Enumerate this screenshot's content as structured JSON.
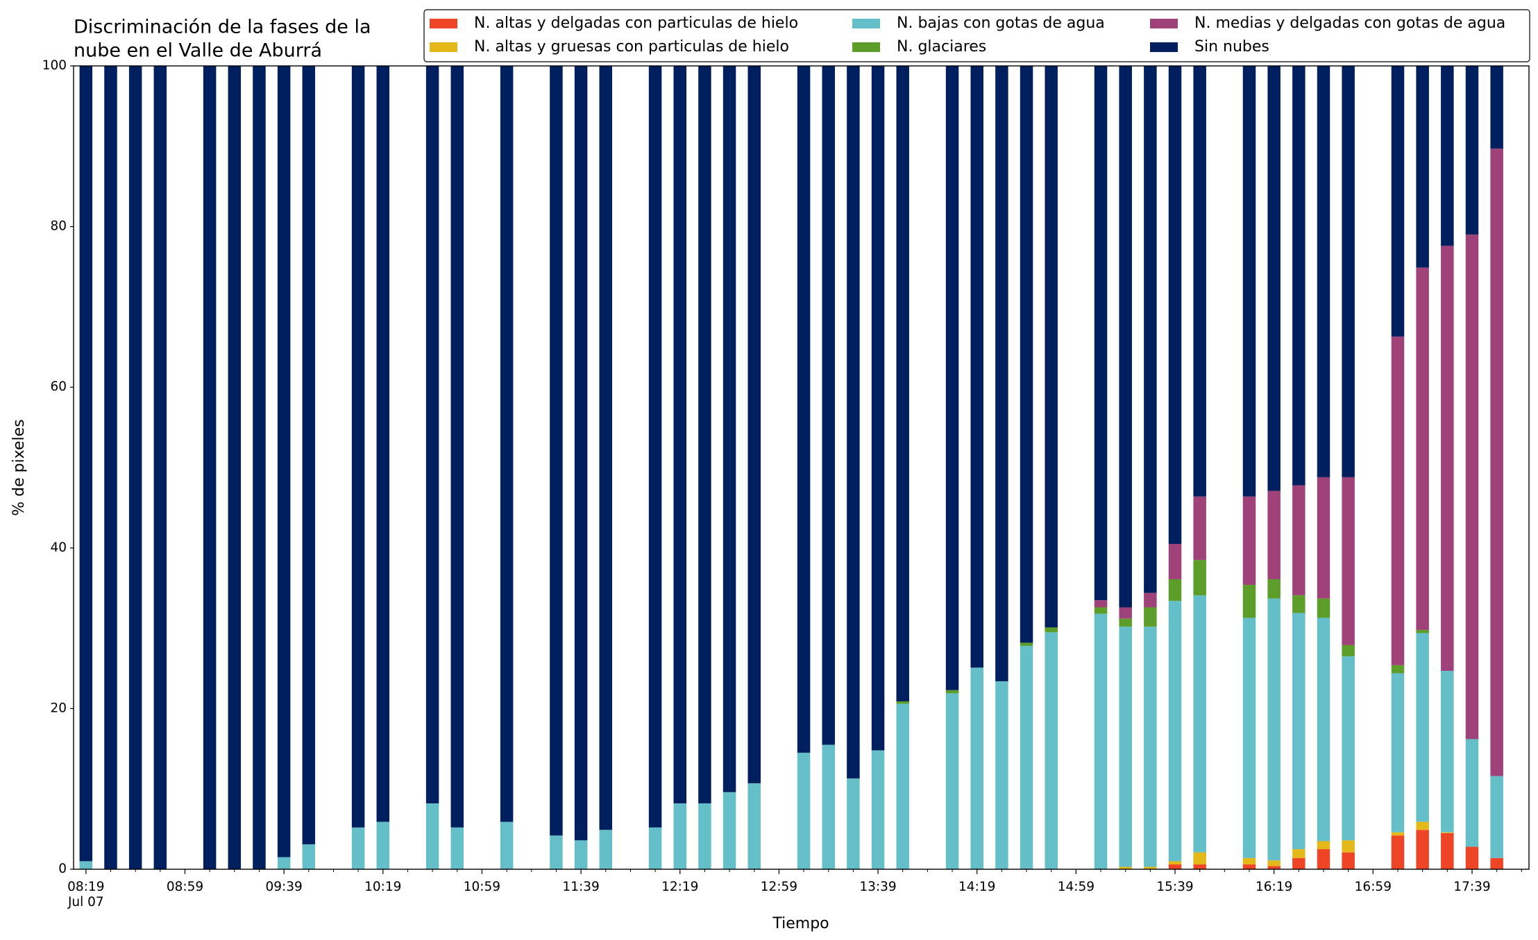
{
  "chart_data": {
    "type": "stacked_bar",
    "title": [
      "Discriminación de la fases de la",
      "nube en el Valle de Aburrá"
    ],
    "xlabel": "Tiempo",
    "ylabel": "% de pixeles",
    "date_label": "Jul 07",
    "x": [
      "08:19",
      "08:29",
      "08:39",
      "08:49",
      "09:09",
      "09:19",
      "09:29",
      "09:39",
      "09:49",
      "10:09",
      "10:19",
      "10:39",
      "10:49",
      "11:09",
      "11:29",
      "11:39",
      "11:49",
      "12:09",
      "12:19",
      "12:29",
      "12:39",
      "12:49",
      "13:09",
      "13:19",
      "13:29",
      "13:39",
      "13:49",
      "14:09",
      "14:19",
      "14:29",
      "14:39",
      "14:49",
      "15:09",
      "15:19",
      "15:29",
      "15:39",
      "15:49",
      "16:09",
      "16:19",
      "16:29",
      "16:39",
      "16:49",
      "17:09",
      "17:19",
      "17:29",
      "17:39",
      "17:49"
    ],
    "series": [
      {
        "name": "N. altas y delgadas con particulas de hielo",
        "color": "#ee4527",
        "values": [
          0,
          0,
          0,
          0,
          0,
          0,
          0,
          0,
          0,
          0,
          0,
          0,
          0,
          0,
          0,
          0,
          0,
          0,
          0,
          0,
          0,
          0,
          0,
          0,
          0,
          0,
          0,
          0,
          0,
          0,
          0,
          0,
          0,
          0,
          0,
          0.6,
          0.6,
          0.6,
          0.4,
          1.4,
          2.5,
          2.1,
          4.2,
          4.9,
          4.5,
          2.8,
          1.4
        ]
      },
      {
        "name": "N. altas y gruesas con particulas de hielo",
        "color": "#e5b81a",
        "values": [
          0,
          0,
          0,
          0,
          0,
          0,
          0,
          0,
          0,
          0,
          0,
          0,
          0,
          0,
          0,
          0,
          0,
          0,
          0,
          0,
          0,
          0,
          0,
          0,
          0,
          0,
          0,
          0,
          0,
          0,
          0,
          0,
          0,
          0.3,
          0.3,
          0.4,
          1.5,
          0.8,
          0.7,
          1.1,
          1.0,
          1.5,
          0.4,
          1.0,
          0.1,
          0,
          0
        ]
      },
      {
        "name": "N. bajas con gotas de agua",
        "color": "#64bfc9",
        "values": [
          1.0,
          0,
          0,
          0,
          0,
          0,
          0,
          1.5,
          3.1,
          5.2,
          5.9,
          8.2,
          5.2,
          5.9,
          4.2,
          3.6,
          4.9,
          5.2,
          8.2,
          8.2,
          9.6,
          10.7,
          14.5,
          15.5,
          11.3,
          14.8,
          20.6,
          21.9,
          25.1,
          23.4,
          27.8,
          29.5,
          31.8,
          29.9,
          29.9,
          32.4,
          32.0,
          29.9,
          32.6,
          29.4,
          27.8,
          22.9,
          19.8,
          23.5,
          20.1,
          13.4,
          10.2
        ]
      },
      {
        "name": "N. glaciares",
        "color": "#5d9e2b",
        "values": [
          0,
          0,
          0,
          0,
          0,
          0,
          0,
          0,
          0,
          0,
          0,
          0,
          0,
          0,
          0,
          0,
          0,
          0,
          0,
          0,
          0,
          0,
          0,
          0,
          0,
          0,
          0.3,
          0.4,
          0,
          0,
          0.4,
          0.6,
          0.8,
          1.0,
          2.4,
          2.7,
          4.4,
          4.1,
          2.4,
          2.2,
          2.4,
          1.4,
          1.0,
          0.4,
          0,
          0,
          0
        ]
      },
      {
        "name": "N. medias y delgadas con gotas de agua",
        "color": "#a0427a",
        "values": [
          0,
          0,
          0,
          0,
          0,
          0,
          0,
          0,
          0,
          0,
          0,
          0,
          0,
          0,
          0,
          0,
          0,
          0,
          0,
          0,
          0,
          0,
          0,
          0,
          0,
          0,
          0,
          0,
          0,
          0,
          0,
          0,
          0.9,
          1.4,
          1.8,
          4.4,
          7.9,
          11.0,
          11.0,
          13.7,
          15.1,
          20.9,
          40.9,
          45.1,
          52.9,
          62.8,
          78.1
        ]
      },
      {
        "name": "Sin nubes",
        "color": "#001f5f",
        "values": [
          99.0,
          100,
          100,
          100,
          100,
          100,
          100,
          98.5,
          96.9,
          94.8,
          94.1,
          91.8,
          94.8,
          94.1,
          95.8,
          96.4,
          95.1,
          94.8,
          91.8,
          91.8,
          90.4,
          89.3,
          85.5,
          84.5,
          88.7,
          85.2,
          79.1,
          77.7,
          74.9,
          76.6,
          71.8,
          69.9,
          66.5,
          67.4,
          65.6,
          59.5,
          53.6,
          53.6,
          52.9,
          52.2,
          51.2,
          51.2,
          33.7,
          25.1,
          22.4,
          21.0,
          10.3
        ]
      }
    ],
    "xlim": [
      "08:14",
      "18:02"
    ],
    "xticks": [
      "08:19",
      "08:59",
      "09:39",
      "10:19",
      "10:59",
      "11:39",
      "12:19",
      "12:59",
      "13:39",
      "14:19",
      "14:59",
      "15:39",
      "16:19",
      "16:59",
      "17:39"
    ],
    "xminorticks": [
      "08:29",
      "08:39",
      "08:49",
      "09:09",
      "09:19",
      "09:29",
      "09:49",
      "09:59",
      "10:09",
      "10:29",
      "10:39",
      "10:49",
      "11:09",
      "11:19",
      "11:29",
      "11:49",
      "11:59",
      "12:09",
      "12:29",
      "12:39",
      "12:49",
      "13:09",
      "13:19",
      "13:29",
      "13:49",
      "13:59",
      "14:09",
      "14:29",
      "14:39",
      "14:49",
      "15:09",
      "15:19",
      "15:29",
      "15:49",
      "15:59",
      "16:09",
      "16:29",
      "16:39",
      "16:49",
      "17:09",
      "17:19",
      "17:29",
      "17:49",
      "17:59"
    ],
    "ylim": [
      0,
      100
    ],
    "yticks": [
      0,
      20,
      40,
      60,
      80,
      100
    ],
    "grid": false,
    "legend_loc": "upper right"
  }
}
